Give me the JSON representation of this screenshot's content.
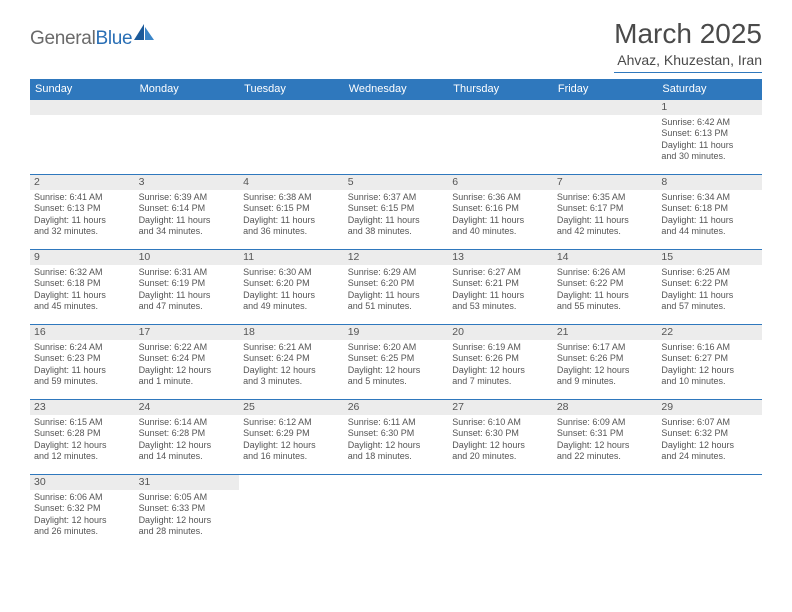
{
  "logo": {
    "general": "General",
    "blue": "Blue"
  },
  "title": "March 2025",
  "location": "Ahvaz, Khuzestan, Iran",
  "colors": {
    "header_bar": "#2f78bd",
    "header_text": "#ffffff",
    "strip_bg": "#ececec",
    "text": "#555555",
    "rule": "#2f78bd"
  },
  "days_of_week": [
    "Sunday",
    "Monday",
    "Tuesday",
    "Wednesday",
    "Thursday",
    "Friday",
    "Saturday"
  ],
  "weeks": [
    [
      {
        "blank": true
      },
      {
        "blank": true
      },
      {
        "blank": true
      },
      {
        "blank": true
      },
      {
        "blank": true
      },
      {
        "blank": true
      },
      {
        "n": "1",
        "sunrise": "Sunrise: 6:42 AM",
        "sunset": "Sunset: 6:13 PM",
        "day1": "Daylight: 11 hours",
        "day2": "and 30 minutes."
      }
    ],
    [
      {
        "n": "2",
        "sunrise": "Sunrise: 6:41 AM",
        "sunset": "Sunset: 6:13 PM",
        "day1": "Daylight: 11 hours",
        "day2": "and 32 minutes."
      },
      {
        "n": "3",
        "sunrise": "Sunrise: 6:39 AM",
        "sunset": "Sunset: 6:14 PM",
        "day1": "Daylight: 11 hours",
        "day2": "and 34 minutes."
      },
      {
        "n": "4",
        "sunrise": "Sunrise: 6:38 AM",
        "sunset": "Sunset: 6:15 PM",
        "day1": "Daylight: 11 hours",
        "day2": "and 36 minutes."
      },
      {
        "n": "5",
        "sunrise": "Sunrise: 6:37 AM",
        "sunset": "Sunset: 6:15 PM",
        "day1": "Daylight: 11 hours",
        "day2": "and 38 minutes."
      },
      {
        "n": "6",
        "sunrise": "Sunrise: 6:36 AM",
        "sunset": "Sunset: 6:16 PM",
        "day1": "Daylight: 11 hours",
        "day2": "and 40 minutes."
      },
      {
        "n": "7",
        "sunrise": "Sunrise: 6:35 AM",
        "sunset": "Sunset: 6:17 PM",
        "day1": "Daylight: 11 hours",
        "day2": "and 42 minutes."
      },
      {
        "n": "8",
        "sunrise": "Sunrise: 6:34 AM",
        "sunset": "Sunset: 6:18 PM",
        "day1": "Daylight: 11 hours",
        "day2": "and 44 minutes."
      }
    ],
    [
      {
        "n": "9",
        "sunrise": "Sunrise: 6:32 AM",
        "sunset": "Sunset: 6:18 PM",
        "day1": "Daylight: 11 hours",
        "day2": "and 45 minutes."
      },
      {
        "n": "10",
        "sunrise": "Sunrise: 6:31 AM",
        "sunset": "Sunset: 6:19 PM",
        "day1": "Daylight: 11 hours",
        "day2": "and 47 minutes."
      },
      {
        "n": "11",
        "sunrise": "Sunrise: 6:30 AM",
        "sunset": "Sunset: 6:20 PM",
        "day1": "Daylight: 11 hours",
        "day2": "and 49 minutes."
      },
      {
        "n": "12",
        "sunrise": "Sunrise: 6:29 AM",
        "sunset": "Sunset: 6:20 PM",
        "day1": "Daylight: 11 hours",
        "day2": "and 51 minutes."
      },
      {
        "n": "13",
        "sunrise": "Sunrise: 6:27 AM",
        "sunset": "Sunset: 6:21 PM",
        "day1": "Daylight: 11 hours",
        "day2": "and 53 minutes."
      },
      {
        "n": "14",
        "sunrise": "Sunrise: 6:26 AM",
        "sunset": "Sunset: 6:22 PM",
        "day1": "Daylight: 11 hours",
        "day2": "and 55 minutes."
      },
      {
        "n": "15",
        "sunrise": "Sunrise: 6:25 AM",
        "sunset": "Sunset: 6:22 PM",
        "day1": "Daylight: 11 hours",
        "day2": "and 57 minutes."
      }
    ],
    [
      {
        "n": "16",
        "sunrise": "Sunrise: 6:24 AM",
        "sunset": "Sunset: 6:23 PM",
        "day1": "Daylight: 11 hours",
        "day2": "and 59 minutes."
      },
      {
        "n": "17",
        "sunrise": "Sunrise: 6:22 AM",
        "sunset": "Sunset: 6:24 PM",
        "day1": "Daylight: 12 hours",
        "day2": "and 1 minute."
      },
      {
        "n": "18",
        "sunrise": "Sunrise: 6:21 AM",
        "sunset": "Sunset: 6:24 PM",
        "day1": "Daylight: 12 hours",
        "day2": "and 3 minutes."
      },
      {
        "n": "19",
        "sunrise": "Sunrise: 6:20 AM",
        "sunset": "Sunset: 6:25 PM",
        "day1": "Daylight: 12 hours",
        "day2": "and 5 minutes."
      },
      {
        "n": "20",
        "sunrise": "Sunrise: 6:19 AM",
        "sunset": "Sunset: 6:26 PM",
        "day1": "Daylight: 12 hours",
        "day2": "and 7 minutes."
      },
      {
        "n": "21",
        "sunrise": "Sunrise: 6:17 AM",
        "sunset": "Sunset: 6:26 PM",
        "day1": "Daylight: 12 hours",
        "day2": "and 9 minutes."
      },
      {
        "n": "22",
        "sunrise": "Sunrise: 6:16 AM",
        "sunset": "Sunset: 6:27 PM",
        "day1": "Daylight: 12 hours",
        "day2": "and 10 minutes."
      }
    ],
    [
      {
        "n": "23",
        "sunrise": "Sunrise: 6:15 AM",
        "sunset": "Sunset: 6:28 PM",
        "day1": "Daylight: 12 hours",
        "day2": "and 12 minutes."
      },
      {
        "n": "24",
        "sunrise": "Sunrise: 6:14 AM",
        "sunset": "Sunset: 6:28 PM",
        "day1": "Daylight: 12 hours",
        "day2": "and 14 minutes."
      },
      {
        "n": "25",
        "sunrise": "Sunrise: 6:12 AM",
        "sunset": "Sunset: 6:29 PM",
        "day1": "Daylight: 12 hours",
        "day2": "and 16 minutes."
      },
      {
        "n": "26",
        "sunrise": "Sunrise: 6:11 AM",
        "sunset": "Sunset: 6:30 PM",
        "day1": "Daylight: 12 hours",
        "day2": "and 18 minutes."
      },
      {
        "n": "27",
        "sunrise": "Sunrise: 6:10 AM",
        "sunset": "Sunset: 6:30 PM",
        "day1": "Daylight: 12 hours",
        "day2": "and 20 minutes."
      },
      {
        "n": "28",
        "sunrise": "Sunrise: 6:09 AM",
        "sunset": "Sunset: 6:31 PM",
        "day1": "Daylight: 12 hours",
        "day2": "and 22 minutes."
      },
      {
        "n": "29",
        "sunrise": "Sunrise: 6:07 AM",
        "sunset": "Sunset: 6:32 PM",
        "day1": "Daylight: 12 hours",
        "day2": "and 24 minutes."
      }
    ],
    [
      {
        "n": "30",
        "sunrise": "Sunrise: 6:06 AM",
        "sunset": "Sunset: 6:32 PM",
        "day1": "Daylight: 12 hours",
        "day2": "and 26 minutes."
      },
      {
        "n": "31",
        "sunrise": "Sunrise: 6:05 AM",
        "sunset": "Sunset: 6:33 PM",
        "day1": "Daylight: 12 hours",
        "day2": "and 28 minutes."
      },
      {
        "blank": true
      },
      {
        "blank": true
      },
      {
        "blank": true
      },
      {
        "blank": true
      },
      {
        "blank": true
      }
    ]
  ]
}
